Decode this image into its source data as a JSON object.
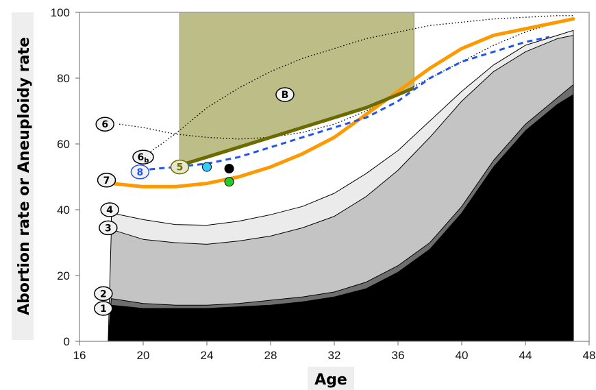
{
  "chart_data": {
    "type": "area",
    "title": "",
    "xlabel": "Age",
    "ylabel": "Abortion rate or Aneuploidy rate",
    "xlim": [
      16,
      48
    ],
    "ylim": [
      0,
      100
    ],
    "xticks": [
      "16",
      "20",
      "24",
      "28",
      "32",
      "36",
      "40",
      "44",
      "48"
    ],
    "yticks": [
      "0",
      "20",
      "40",
      "60",
      "80",
      "100"
    ],
    "grid": false,
    "colors": {
      "band1": "#000000",
      "band2": "#6e6e6e",
      "band3": "#c4c4c4",
      "band4": "#ebebeb",
      "curve7": "#ff9900",
      "curve8": "#2255ee",
      "curve5": "#6b6b00",
      "regionB": "#bdbd88",
      "point_cyan": "#33ccff",
      "point_black": "#000000",
      "point_green": "#22cc22"
    },
    "series": [
      {
        "label": "1",
        "style": "filled-black",
        "x": [
          17.8,
          18,
          20,
          22,
          24,
          26,
          28,
          30,
          32,
          34,
          36,
          38,
          40,
          42,
          44,
          46,
          47
        ],
        "y": [
          0,
          11,
          10,
          10,
          10,
          10.5,
          11,
          12,
          13.5,
          16,
          21,
          28,
          39,
          53,
          64,
          72,
          75
        ]
      },
      {
        "label": "2",
        "style": "filled-darkgray",
        "x": [
          17.8,
          18,
          20,
          22,
          24,
          26,
          28,
          30,
          32,
          34,
          36,
          38,
          40,
          42,
          44,
          46,
          47
        ],
        "y": [
          0,
          13,
          11.5,
          11,
          11,
          11.5,
          12.5,
          13.5,
          15,
          18,
          23,
          30,
          41,
          55,
          66,
          74,
          78
        ]
      },
      {
        "label": "3",
        "style": "filled-lightgray",
        "x": [
          17.8,
          18,
          20,
          22,
          24,
          26,
          28,
          30,
          32,
          34,
          36,
          38,
          40,
          42,
          44,
          46,
          47
        ],
        "y": [
          0,
          34,
          31,
          30,
          29.5,
          30.5,
          32,
          34.5,
          38,
          44,
          52,
          62,
          73,
          82,
          88,
          92,
          93
        ]
      },
      {
        "label": "4",
        "style": "filled-verylightgray",
        "x": [
          18,
          20,
          22,
          24,
          26,
          28,
          30,
          32,
          34,
          36,
          38,
          40,
          42,
          44,
          46,
          47
        ],
        "y": [
          39,
          37,
          35.5,
          35.3,
          36.5,
          38.5,
          41,
          45,
          51,
          58,
          67,
          76,
          84,
          90,
          93,
          94.5
        ]
      },
      {
        "label": "7",
        "style": "orange-line",
        "x": [
          18,
          20,
          22,
          24,
          26,
          28,
          30,
          32,
          34,
          36,
          38,
          40,
          42,
          44,
          46,
          47
        ],
        "y": [
          48,
          47,
          47,
          48,
          50,
          53,
          57,
          62,
          69,
          76,
          83,
          89,
          93,
          95,
          97,
          98
        ]
      },
      {
        "label": "8",
        "style": "blue-dashed-line",
        "x": [
          19.8,
          22,
          24,
          26,
          28,
          30,
          32,
          34,
          36,
          38,
          40,
          42,
          44,
          45.5
        ],
        "y": [
          52,
          53,
          54,
          56,
          59,
          62,
          65,
          68,
          73,
          80,
          85,
          88,
          91,
          92.5
        ]
      },
      {
        "label": "5",
        "style": "olive-line",
        "x": [
          22.3,
          24,
          26,
          28,
          30,
          32,
          34,
          36,
          37
        ],
        "y": [
          53.5,
          56,
          59,
          62,
          65,
          68,
          71,
          75,
          77
        ]
      },
      {
        "label": "6",
        "style": "black-dotted-line",
        "x": [
          18.5,
          20,
          22,
          24,
          26,
          28,
          30,
          32,
          34,
          36,
          38,
          40,
          42,
          44,
          46,
          47
        ],
        "y": [
          66,
          65,
          63,
          62,
          61.5,
          62,
          63.5,
          66,
          70,
          75,
          80,
          85,
          90,
          94,
          97,
          98
        ]
      },
      {
        "label": "6b",
        "style": "black-dotted-line",
        "x": [
          20,
          22,
          24,
          26,
          28,
          30,
          32,
          34,
          36,
          38,
          40,
          42,
          44,
          46,
          47
        ],
        "y": [
          56,
          63,
          71,
          77,
          82,
          86,
          89,
          92,
          94,
          96,
          97,
          98,
          98.5,
          99,
          99
        ]
      }
    ],
    "regions": [
      {
        "label": "B",
        "x": [
          22.3,
          37
        ],
        "y_top": 100,
        "bottom_follows": "5"
      }
    ],
    "points": [
      {
        "x": 24,
        "y": 53,
        "color": "point_cyan"
      },
      {
        "x": 25.4,
        "y": 52.5,
        "color": "point_black"
      },
      {
        "x": 25.4,
        "y": 48.5,
        "color": "point_green"
      }
    ],
    "markers": [
      {
        "text": "1",
        "x": 17.5,
        "y": 10
      },
      {
        "text": "2",
        "x": 17.5,
        "y": 14.5
      },
      {
        "text": "3",
        "x": 17.8,
        "y": 34.5
      },
      {
        "text": "4",
        "x": 17.9,
        "y": 40
      },
      {
        "text": "7",
        "x": 17.7,
        "y": 49
      },
      {
        "text": "8",
        "x": 19.8,
        "y": 51.5
      },
      {
        "text": "6b",
        "x": 20,
        "y": 56
      },
      {
        "text": "5",
        "x": 22.3,
        "y": 53
      },
      {
        "text": "6",
        "x": 17.6,
        "y": 66
      },
      {
        "text": "B",
        "x": 28.9,
        "y": 75
      }
    ]
  }
}
